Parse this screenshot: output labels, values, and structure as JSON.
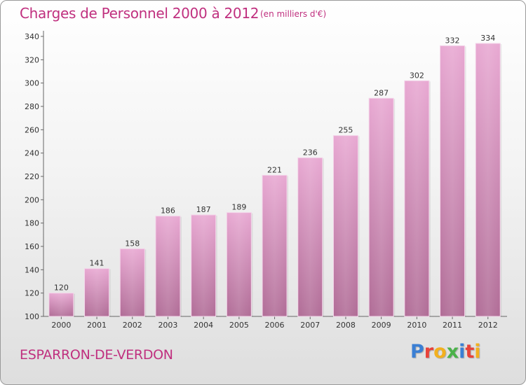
{
  "header": {
    "title": "Charges de Personnel 2000 à 2012",
    "unit": "(en milliers d'€)"
  },
  "footer": {
    "commune": "ESPARRON-DE-VERDON",
    "logo_letters": [
      "P",
      "r",
      "o",
      "x",
      "i",
      "t",
      "i"
    ],
    "logo_colors": [
      "#3b7fd4",
      "#e8423a",
      "#f2b01e",
      "#4bb24a",
      "#3b7fd4",
      "#e8423a",
      "#f2b01e"
    ]
  },
  "chart_data": {
    "type": "bar",
    "categories": [
      "2000",
      "2001",
      "2002",
      "2003",
      "2004",
      "2005",
      "2006",
      "2007",
      "2008",
      "2009",
      "2010",
      "2011",
      "2012"
    ],
    "values": [
      120,
      141,
      158,
      186,
      187,
      189,
      221,
      236,
      255,
      287,
      302,
      332,
      334
    ],
    "data_labels": [
      "120",
      "141",
      "158",
      "186",
      "187",
      "189",
      "221",
      "236",
      "255",
      "287",
      "302",
      "332",
      "334"
    ],
    "y_ticks": [
      100,
      120,
      140,
      160,
      180,
      200,
      220,
      240,
      260,
      280,
      300,
      320,
      340
    ],
    "ylim": [
      100,
      340
    ],
    "grid": false,
    "bar_color_top": "#e8a8d2",
    "bar_color_bottom": "#b06c96",
    "axis_color": "#666666"
  }
}
